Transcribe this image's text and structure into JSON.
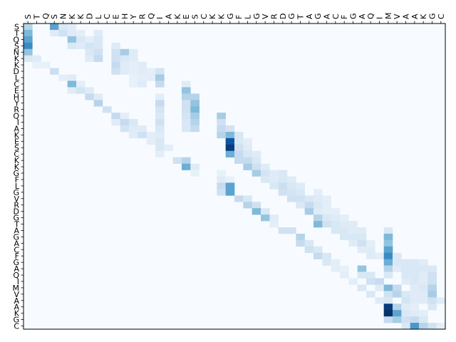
{
  "chart_data": {
    "type": "heatmap",
    "colormap": "Blues",
    "grid": false,
    "legend": "none",
    "x_tick_labels": [
      "S",
      "T",
      "Q",
      "S",
      "N",
      "K",
      "K",
      "D",
      "L",
      "C",
      "E",
      "H",
      "Y",
      "R",
      "Q",
      "I",
      "A",
      "K",
      "E",
      "S",
      "C",
      "K",
      "K",
      "G",
      "F",
      "L",
      "G",
      "V",
      "R",
      "D",
      "G",
      "T",
      "A",
      "G",
      "A",
      "C",
      "F",
      "G",
      "A",
      "Q",
      "I",
      "M",
      "V",
      "A",
      "A",
      "K",
      "G",
      "C"
    ],
    "y_tick_labels": [
      "S",
      "T",
      "Q",
      "S",
      "N",
      "K",
      "K",
      "D",
      "L",
      "C",
      "E",
      "H",
      "Y",
      "R",
      "Q",
      "I",
      "A",
      "K",
      "E",
      "S",
      "C",
      "K",
      "K",
      "G",
      "F",
      "L",
      "G",
      "V",
      "R",
      "D",
      "G",
      "T",
      "A",
      "G",
      "A",
      "C",
      "F",
      "G",
      "A",
      "Q",
      "I",
      "M",
      "V",
      "A",
      "A",
      "K",
      "G",
      "C"
    ],
    "value_range": [
      0,
      1
    ],
    "cells": [
      [
        0,
        0,
        0.3
      ],
      [
        0,
        3,
        0.55
      ],
      [
        0,
        4,
        0.15
      ],
      [
        0,
        5,
        0.12
      ],
      [
        1,
        0,
        0.45
      ],
      [
        1,
        3,
        0.12
      ],
      [
        1,
        4,
        0.2
      ],
      [
        1,
        5,
        0.12
      ],
      [
        1,
        6,
        0.1
      ],
      [
        1,
        8,
        0.12
      ],
      [
        2,
        0,
        0.55
      ],
      [
        2,
        5,
        0.4
      ],
      [
        2,
        6,
        0.15
      ],
      [
        2,
        7,
        0.1
      ],
      [
        2,
        8,
        0.15
      ],
      [
        3,
        0,
        0.65
      ],
      [
        3,
        5,
        0.15
      ],
      [
        3,
        6,
        0.12
      ],
      [
        3,
        7,
        0.18
      ],
      [
        3,
        8,
        0.15
      ],
      [
        3,
        10,
        0.12
      ],
      [
        4,
        0,
        0.4
      ],
      [
        4,
        7,
        0.15
      ],
      [
        4,
        8,
        0.2
      ],
      [
        4,
        10,
        0.2
      ],
      [
        4,
        11,
        0.35
      ],
      [
        4,
        12,
        0.12
      ],
      [
        5,
        0,
        0.15
      ],
      [
        5,
        1,
        0.12
      ],
      [
        5,
        7,
        0.12
      ],
      [
        5,
        8,
        0.25
      ],
      [
        5,
        10,
        0.2
      ],
      [
        5,
        11,
        0.15
      ],
      [
        5,
        12,
        0.12
      ],
      [
        6,
        1,
        0.08
      ],
      [
        6,
        2,
        0.08
      ],
      [
        6,
        10,
        0.25
      ],
      [
        6,
        11,
        0.12
      ],
      [
        6,
        12,
        0.1
      ],
      [
        6,
        13,
        0.12
      ],
      [
        7,
        3,
        0.22
      ],
      [
        7,
        10,
        0.2
      ],
      [
        7,
        11,
        0.12
      ],
      [
        7,
        12,
        0.1
      ],
      [
        7,
        13,
        0.12
      ],
      [
        7,
        14,
        0.1
      ],
      [
        7,
        15,
        0.18
      ],
      [
        8,
        4,
        0.1
      ],
      [
        8,
        5,
        0.12
      ],
      [
        8,
        12,
        0.08
      ],
      [
        8,
        13,
        0.1
      ],
      [
        8,
        14,
        0.1
      ],
      [
        8,
        15,
        0.35
      ],
      [
        9,
        5,
        0.45
      ],
      [
        9,
        6,
        0.1
      ],
      [
        9,
        12,
        0.08
      ],
      [
        9,
        13,
        0.12
      ],
      [
        9,
        15,
        0.25
      ],
      [
        9,
        18,
        0.12
      ],
      [
        10,
        5,
        0.12
      ],
      [
        10,
        6,
        0.18
      ],
      [
        10,
        7,
        0.12
      ],
      [
        10,
        18,
        0.4
      ],
      [
        11,
        7,
        0.25
      ],
      [
        11,
        8,
        0.12
      ],
      [
        11,
        15,
        0.1
      ],
      [
        11,
        18,
        0.3
      ],
      [
        11,
        19,
        0.3
      ],
      [
        12,
        8,
        0.3
      ],
      [
        12,
        15,
        0.25
      ],
      [
        12,
        18,
        0.2
      ],
      [
        12,
        19,
        0.4
      ],
      [
        13,
        9,
        0.2
      ],
      [
        13,
        15,
        0.18
      ],
      [
        13,
        18,
        0.2
      ],
      [
        13,
        19,
        0.45
      ],
      [
        14,
        10,
        0.25
      ],
      [
        14,
        11,
        0.1
      ],
      [
        14,
        15,
        0.15
      ],
      [
        14,
        18,
        0.18
      ],
      [
        14,
        19,
        0.35
      ],
      [
        14,
        22,
        0.35
      ],
      [
        15,
        10,
        0.12
      ],
      [
        15,
        11,
        0.25
      ],
      [
        15,
        12,
        0.15
      ],
      [
        15,
        15,
        0.2
      ],
      [
        15,
        18,
        0.15
      ],
      [
        15,
        19,
        0.3
      ],
      [
        15,
        22,
        0.2
      ],
      [
        16,
        11,
        0.18
      ],
      [
        16,
        12,
        0.12
      ],
      [
        16,
        13,
        0.12
      ],
      [
        16,
        15,
        0.15
      ],
      [
        16,
        18,
        0.15
      ],
      [
        16,
        19,
        0.25
      ],
      [
        16,
        22,
        0.25
      ],
      [
        16,
        23,
        0.18
      ],
      [
        17,
        12,
        0.12
      ],
      [
        17,
        13,
        0.2
      ],
      [
        17,
        14,
        0.1
      ],
      [
        17,
        15,
        0.12
      ],
      [
        17,
        22,
        0.3
      ],
      [
        17,
        23,
        0.45
      ],
      [
        17,
        24,
        0.15
      ],
      [
        18,
        14,
        0.1
      ],
      [
        18,
        15,
        0.15
      ],
      [
        18,
        23,
        0.85
      ],
      [
        18,
        24,
        0.15
      ],
      [
        18,
        25,
        0.1
      ],
      [
        19,
        15,
        0.15
      ],
      [
        19,
        16,
        0.1
      ],
      [
        19,
        23,
        0.95
      ],
      [
        19,
        24,
        0.2
      ],
      [
        19,
        25,
        0.12
      ],
      [
        20,
        15,
        0.1
      ],
      [
        20,
        23,
        0.5
      ],
      [
        20,
        24,
        0.25
      ],
      [
        20,
        25,
        0.15
      ],
      [
        20,
        26,
        0.12
      ],
      [
        21,
        17,
        0.2
      ],
      [
        21,
        18,
        0.3
      ],
      [
        21,
        24,
        0.25
      ],
      [
        21,
        25,
        0.25
      ],
      [
        21,
        26,
        0.15
      ],
      [
        22,
        18,
        0.5
      ],
      [
        22,
        19,
        0.12
      ],
      [
        22,
        25,
        0.35
      ],
      [
        22,
        26,
        0.2
      ],
      [
        22,
        27,
        0.12
      ],
      [
        23,
        19,
        0.08
      ],
      [
        23,
        22,
        0.08
      ],
      [
        23,
        26,
        0.35
      ],
      [
        23,
        27,
        0.18
      ],
      [
        23,
        28,
        0.12
      ],
      [
        23,
        29,
        0.15
      ],
      [
        24,
        22,
        0.12
      ],
      [
        24,
        23,
        0.08
      ],
      [
        24,
        27,
        0.15
      ],
      [
        24,
        28,
        0.12
      ],
      [
        24,
        29,
        0.15
      ],
      [
        24,
        30,
        0.12
      ],
      [
        25,
        22,
        0.25
      ],
      [
        25,
        23,
        0.55
      ],
      [
        25,
        28,
        0.15
      ],
      [
        25,
        29,
        0.22
      ],
      [
        25,
        30,
        0.15
      ],
      [
        25,
        31,
        0.12
      ],
      [
        26,
        22,
        0.2
      ],
      [
        26,
        23,
        0.55
      ],
      [
        26,
        29,
        0.2
      ],
      [
        26,
        30,
        0.18
      ],
      [
        26,
        31,
        0.15
      ],
      [
        26,
        33,
        0.1
      ],
      [
        27,
        24,
        0.25
      ],
      [
        27,
        25,
        0.15
      ],
      [
        27,
        30,
        0.2
      ],
      [
        27,
        31,
        0.2
      ],
      [
        27,
        32,
        0.15
      ],
      [
        27,
        33,
        0.12
      ],
      [
        27,
        34,
        0.1
      ],
      [
        28,
        25,
        0.3
      ],
      [
        28,
        26,
        0.2
      ],
      [
        28,
        31,
        0.15
      ],
      [
        28,
        32,
        0.25
      ],
      [
        28,
        33,
        0.15
      ],
      [
        28,
        34,
        0.1
      ],
      [
        29,
        26,
        0.45
      ],
      [
        29,
        27,
        0.15
      ],
      [
        29,
        32,
        0.35
      ],
      [
        29,
        33,
        0.12
      ],
      [
        29,
        34,
        0.1
      ],
      [
        29,
        35,
        0.1
      ],
      [
        30,
        27,
        0.4
      ],
      [
        30,
        28,
        0.12
      ],
      [
        30,
        33,
        0.3
      ],
      [
        30,
        34,
        0.15
      ],
      [
        30,
        35,
        0.12
      ],
      [
        30,
        36,
        0.1
      ],
      [
        31,
        28,
        0.1
      ],
      [
        31,
        33,
        0.45
      ],
      [
        31,
        34,
        0.2
      ],
      [
        31,
        35,
        0.15
      ],
      [
        31,
        36,
        0.12
      ],
      [
        31,
        37,
        0.12
      ],
      [
        32,
        29,
        0.2
      ],
      [
        32,
        30,
        0.2
      ],
      [
        32,
        35,
        0.15
      ],
      [
        32,
        36,
        0.15
      ],
      [
        32,
        37,
        0.12
      ],
      [
        32,
        38,
        0.12
      ],
      [
        32,
        41,
        0.15
      ],
      [
        33,
        31,
        0.3
      ],
      [
        33,
        36,
        0.15
      ],
      [
        33,
        37,
        0.15
      ],
      [
        33,
        38,
        0.15
      ],
      [
        33,
        41,
        0.45
      ],
      [
        34,
        31,
        0.25
      ],
      [
        34,
        32,
        0.15
      ],
      [
        34,
        37,
        0.12
      ],
      [
        34,
        38,
        0.2
      ],
      [
        34,
        39,
        0.1
      ],
      [
        34,
        41,
        0.4
      ],
      [
        35,
        32,
        0.2
      ],
      [
        35,
        33,
        0.15
      ],
      [
        35,
        38,
        0.12
      ],
      [
        35,
        39,
        0.12
      ],
      [
        35,
        41,
        0.55
      ],
      [
        36,
        33,
        0.25
      ],
      [
        36,
        34,
        0.15
      ],
      [
        36,
        39,
        0.12
      ],
      [
        36,
        40,
        0.1
      ],
      [
        36,
        41,
        0.65
      ],
      [
        36,
        42,
        0.15
      ],
      [
        37,
        34,
        0.15
      ],
      [
        37,
        35,
        0.1
      ],
      [
        37,
        41,
        0.5
      ],
      [
        37,
        42,
        0.15
      ],
      [
        37,
        43,
        0.15
      ],
      [
        37,
        44,
        0.15
      ],
      [
        37,
        45,
        0.12
      ],
      [
        38,
        35,
        0.1
      ],
      [
        38,
        36,
        0.08
      ],
      [
        38,
        38,
        0.4
      ],
      [
        38,
        41,
        0.3
      ],
      [
        38,
        42,
        0.12
      ],
      [
        38,
        43,
        0.15
      ],
      [
        38,
        44,
        0.15
      ],
      [
        38,
        45,
        0.15
      ],
      [
        38,
        46,
        0.15
      ],
      [
        39,
        36,
        0.1
      ],
      [
        39,
        38,
        0.15
      ],
      [
        39,
        39,
        0.15
      ],
      [
        39,
        41,
        0.15
      ],
      [
        39,
        43,
        0.15
      ],
      [
        39,
        44,
        0.15
      ],
      [
        39,
        45,
        0.12
      ],
      [
        39,
        46,
        0.2
      ],
      [
        40,
        37,
        0.1
      ],
      [
        40,
        39,
        0.2
      ],
      [
        40,
        40,
        0.25
      ],
      [
        40,
        43,
        0.12
      ],
      [
        40,
        44,
        0.15
      ],
      [
        40,
        45,
        0.12
      ],
      [
        40,
        46,
        0.2
      ],
      [
        41,
        38,
        0.15
      ],
      [
        41,
        40,
        0.12
      ],
      [
        41,
        41,
        0.45
      ],
      [
        41,
        42,
        0.25
      ],
      [
        41,
        44,
        0.12
      ],
      [
        41,
        45,
        0.15
      ],
      [
        41,
        46,
        0.3
      ],
      [
        42,
        39,
        0.15
      ],
      [
        42,
        41,
        0.2
      ],
      [
        42,
        42,
        0.3
      ],
      [
        42,
        43,
        0.15
      ],
      [
        42,
        44,
        0.12
      ],
      [
        42,
        45,
        0.12
      ],
      [
        42,
        46,
        0.35
      ],
      [
        43,
        40,
        0.12
      ],
      [
        43,
        41,
        0.15
      ],
      [
        43,
        43,
        0.18
      ],
      [
        43,
        44,
        0.12
      ],
      [
        43,
        45,
        0.12
      ],
      [
        43,
        46,
        0.2
      ],
      [
        43,
        47,
        0.12
      ],
      [
        44,
        41,
        0.95
      ],
      [
        44,
        42,
        0.3
      ],
      [
        44,
        43,
        0.12
      ],
      [
        44,
        44,
        0.1
      ],
      [
        44,
        46,
        0.15
      ],
      [
        45,
        41,
        1.0
      ],
      [
        45,
        42,
        0.55
      ],
      [
        45,
        43,
        0.15
      ],
      [
        45,
        44,
        0.12
      ],
      [
        45,
        45,
        0.1
      ],
      [
        46,
        41,
        0.25
      ],
      [
        46,
        42,
        0.35
      ],
      [
        46,
        43,
        0.2
      ],
      [
        46,
        44,
        0.25
      ],
      [
        46,
        45,
        0.15
      ],
      [
        47,
        43,
        0.15
      ],
      [
        47,
        44,
        0.6
      ],
      [
        47,
        45,
        0.3
      ],
      [
        47,
        46,
        0.2
      ],
      [
        47,
        47,
        0.1
      ]
    ]
  }
}
